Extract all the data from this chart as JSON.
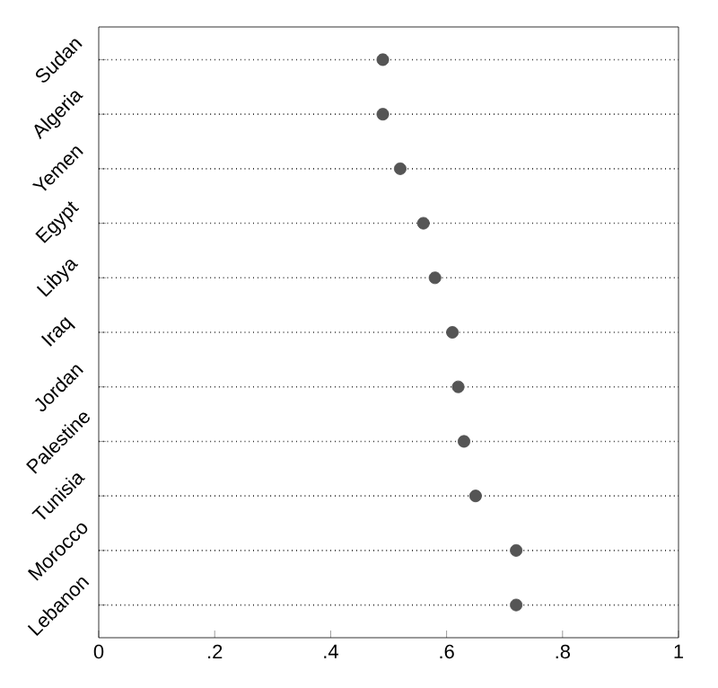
{
  "chart_data": {
    "type": "scatter",
    "orientation": "horizontal",
    "categories": [
      "Sudan",
      "Algeria",
      "Yemen",
      "Egypt",
      "Libya",
      "Iraq",
      "Jordan",
      "Palestine",
      "Tunisia",
      "Morocco",
      "Lebanon"
    ],
    "values": [
      0.49,
      0.49,
      0.52,
      0.56,
      0.58,
      0.61,
      0.62,
      0.63,
      0.65,
      0.72,
      0.72
    ],
    "color": "#555555",
    "marker": "circle",
    "grid": "y",
    "xlim": [
      0,
      1
    ],
    "xticks": [
      0,
      {
        "value": 0.2,
        "label": ".2"
      },
      {
        "value": 0.4,
        "label": ".4"
      },
      {
        "value": 0.6,
        "label": ".6"
      },
      {
        "value": 0.8,
        "label": ".8"
      },
      1
    ]
  }
}
